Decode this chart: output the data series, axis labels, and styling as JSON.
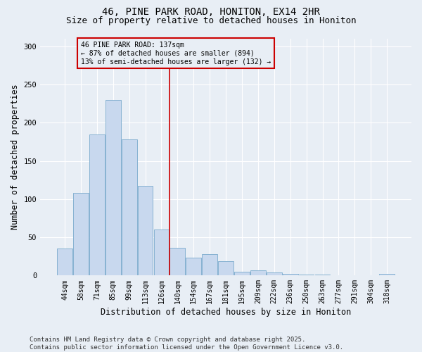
{
  "title": "46, PINE PARK ROAD, HONITON, EX14 2HR",
  "subtitle": "Size of property relative to detached houses in Honiton",
  "xlabel": "Distribution of detached houses by size in Honiton",
  "ylabel": "Number of detached properties",
  "footer_line1": "Contains HM Land Registry data © Crown copyright and database right 2025.",
  "footer_line2": "Contains public sector information licensed under the Open Government Licence v3.0.",
  "categories": [
    "44sqm",
    "58sqm",
    "71sqm",
    "85sqm",
    "99sqm",
    "113sqm",
    "126sqm",
    "140sqm",
    "154sqm",
    "167sqm",
    "181sqm",
    "195sqm",
    "209sqm",
    "222sqm",
    "236sqm",
    "250sqm",
    "263sqm",
    "277sqm",
    "291sqm",
    "304sqm",
    "318sqm"
  ],
  "values": [
    35,
    108,
    185,
    230,
    178,
    117,
    60,
    36,
    23,
    28,
    19,
    5,
    7,
    4,
    2,
    1,
    1,
    0,
    0,
    0,
    2
  ],
  "bar_color": "#c8d8ee",
  "bar_edge_color": "#7aaacc",
  "vline_x": 6.5,
  "vline_color": "#cc0000",
  "annotation_text": "46 PINE PARK ROAD: 137sqm\n← 87% of detached houses are smaller (894)\n13% of semi-detached houses are larger (132) →",
  "annotation_box_color": "#cc0000",
  "ylim": [
    0,
    310
  ],
  "yticks": [
    0,
    50,
    100,
    150,
    200,
    250,
    300
  ],
  "bg_color": "#e8eef5",
  "plot_bg_color": "#e8eef5",
  "grid_color": "#ffffff",
  "title_fontsize": 10,
  "subtitle_fontsize": 9,
  "axis_label_fontsize": 8.5,
  "tick_fontsize": 7,
  "footer_fontsize": 6.5
}
